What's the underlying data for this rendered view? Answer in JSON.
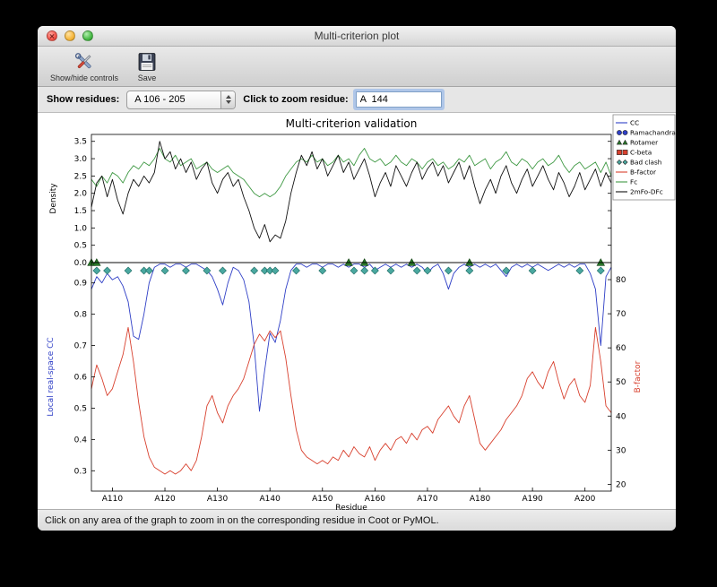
{
  "window": {
    "title": "Multi-criterion plot"
  },
  "toolbar": {
    "buttons": [
      {
        "label": "Show/hide controls",
        "icon": "tools-icon"
      },
      {
        "label": "Save",
        "icon": "floppy-icon"
      }
    ]
  },
  "controls": {
    "show_residues_label": "Show residues:",
    "residue_range_value": "A 106 - 205",
    "zoom_label": "Click to zoom residue:",
    "zoom_value": "A  144"
  },
  "status_bar": {
    "text": "Click on any area of the graph to zoom in on the corresponding residue in Coot or PyMOL."
  },
  "colors": {
    "cc_blue": "#2f3fc6",
    "bfactor_red": "#d8402e",
    "fc_green": "#3f9944",
    "map_black": "#111111",
    "clash_teal": "#4aa8a0",
    "rotamer_green": "#2a7a2a"
  },
  "chart_data": {
    "type": "line",
    "title": "Multi-criterion validation",
    "xlabel": "Residue",
    "x_range": [
      106,
      205
    ],
    "xticks": [
      110,
      120,
      130,
      140,
      150,
      160,
      170,
      180,
      190,
      200
    ],
    "xtick_labels": [
      "A110",
      "A120",
      "A130",
      "A140",
      "A150",
      "A160",
      "A170",
      "A180",
      "A190",
      "A200"
    ],
    "panels": [
      {
        "name": "density",
        "ylabel": "Density",
        "ylim": [
          0,
          3.7
        ],
        "yticks": [
          "0.0",
          "0.5",
          "1.0",
          "1.5",
          "2.0",
          "2.5",
          "3.0",
          "3.5"
        ],
        "series": [
          {
            "name": "Fc",
            "color": "#3f9944",
            "values": [
              2.4,
              2.2,
              2.5,
              2.3,
              2.6,
              2.5,
              2.3,
              2.6,
              2.8,
              2.7,
              2.9,
              2.8,
              3.0,
              3.3,
              3.0,
              2.9,
              3.1,
              2.8,
              2.9,
              3.0,
              2.7,
              2.8,
              2.9,
              2.7,
              2.6,
              2.7,
              2.8,
              2.6,
              2.5,
              2.4,
              2.2,
              2.0,
              1.9,
              2.0,
              1.9,
              2.0,
              2.2,
              2.5,
              2.7,
              2.9,
              3.0,
              2.9,
              3.1,
              2.9,
              3.0,
              2.8,
              2.9,
              3.1,
              2.9,
              3.0,
              2.8,
              3.1,
              3.3,
              3.0,
              2.9,
              3.0,
              2.8,
              2.9,
              3.1,
              2.9,
              2.8,
              3.0,
              2.9,
              2.7,
              2.9,
              3.0,
              2.8,
              2.9,
              2.7,
              2.8,
              3.0,
              2.9,
              3.1,
              2.8,
              2.9,
              3.0,
              2.7,
              2.9,
              3.0,
              3.2,
              2.9,
              2.8,
              3.0,
              2.9,
              2.7,
              2.9,
              3.0,
              2.8,
              2.9,
              3.1,
              2.8,
              2.6,
              2.8,
              2.9,
              2.7,
              2.8,
              2.9,
              2.6,
              2.9,
              2.5
            ]
          },
          {
            "name": "2mFo-DFc",
            "color": "#111111",
            "values": [
              1.6,
              2.3,
              2.5,
              1.9,
              2.4,
              1.8,
              1.4,
              2.0,
              2.4,
              2.2,
              2.5,
              2.3,
              2.6,
              3.5,
              3.0,
              3.2,
              2.7,
              3.0,
              2.6,
              2.9,
              2.4,
              2.7,
              2.9,
              2.3,
              2.0,
              2.4,
              2.6,
              2.2,
              2.4,
              1.9,
              1.5,
              1.0,
              0.7,
              1.1,
              0.6,
              0.8,
              0.7,
              1.2,
              2.0,
              2.6,
              3.1,
              2.8,
              3.2,
              2.7,
              3.0,
              2.5,
              2.8,
              3.1,
              2.6,
              2.9,
              2.4,
              2.7,
              3.0,
              2.5,
              1.9,
              2.3,
              2.6,
              2.2,
              2.8,
              2.5,
              2.2,
              2.6,
              2.9,
              2.4,
              2.7,
              2.9,
              2.5,
              2.8,
              2.3,
              2.6,
              2.9,
              2.4,
              2.8,
              2.2,
              1.7,
              2.1,
              2.4,
              2.0,
              2.5,
              2.8,
              2.3,
              2.0,
              2.4,
              2.7,
              2.2,
              2.5,
              2.8,
              2.4,
              2.1,
              2.6,
              2.3,
              1.9,
              2.2,
              2.6,
              2.1,
              2.4,
              2.7,
              2.2,
              2.6,
              2.3
            ]
          }
        ]
      },
      {
        "name": "cc_bfactor",
        "left_ylabel": "Local real-space CC",
        "left_color": "#2f3fc6",
        "left_ylim": [
          0.235,
          0.965
        ],
        "left_yticks": [
          "0.3",
          "0.4",
          "0.5",
          "0.6",
          "0.7",
          "0.8",
          "0.9"
        ],
        "right_ylabel": "B-factor",
        "right_color": "#d8402e",
        "right_ylim": [
          18,
          85
        ],
        "right_yticks": [
          "20",
          "30",
          "40",
          "50",
          "60",
          "70",
          "80"
        ],
        "series": [
          {
            "name": "CC",
            "axis": "left",
            "color": "#2f3fc6",
            "values": [
              0.88,
              0.92,
              0.9,
              0.93,
              0.91,
              0.92,
              0.89,
              0.84,
              0.73,
              0.72,
              0.8,
              0.9,
              0.95,
              0.96,
              0.96,
              0.95,
              0.96,
              0.96,
              0.95,
              0.96,
              0.96,
              0.95,
              0.94,
              0.92,
              0.88,
              0.83,
              0.9,
              0.95,
              0.94,
              0.91,
              0.84,
              0.7,
              0.49,
              0.62,
              0.74,
              0.71,
              0.78,
              0.88,
              0.94,
              0.96,
              0.96,
              0.95,
              0.96,
              0.96,
              0.95,
              0.96,
              0.96,
              0.95,
              0.96,
              0.95,
              0.96,
              0.96,
              0.95,
              0.96,
              0.94,
              0.95,
              0.96,
              0.95,
              0.96,
              0.95,
              0.96,
              0.95,
              0.96,
              0.95,
              0.93,
              0.95,
              0.96,
              0.93,
              0.88,
              0.93,
              0.95,
              0.96,
              0.95,
              0.96,
              0.95,
              0.96,
              0.95,
              0.96,
              0.94,
              0.92,
              0.95,
              0.96,
              0.95,
              0.96,
              0.95,
              0.96,
              0.95,
              0.94,
              0.95,
              0.96,
              0.95,
              0.96,
              0.95,
              0.96,
              0.96,
              0.93,
              0.88,
              0.7,
              0.92,
              0.95
            ]
          },
          {
            "name": "B-factor",
            "axis": "right",
            "color": "#d8402e",
            "values": [
              48,
              55,
              51,
              46,
              48,
              53,
              58,
              66,
              56,
              44,
              34,
              28,
              25,
              24,
              23,
              24,
              23,
              24,
              26,
              24,
              27,
              34,
              43,
              46,
              41,
              38,
              43,
              46,
              48,
              51,
              56,
              61,
              64,
              62,
              65,
              63,
              65,
              57,
              46,
              36,
              30,
              28,
              27,
              26,
              27,
              26,
              28,
              27,
              30,
              28,
              31,
              29,
              28,
              31,
              27,
              30,
              32,
              30,
              33,
              34,
              32,
              35,
              33,
              36,
              37,
              35,
              39,
              41,
              43,
              40,
              38,
              43,
              46,
              39,
              32,
              30,
              32,
              34,
              36,
              39,
              41,
              43,
              46,
              51,
              53,
              50,
              48,
              53,
              56,
              50,
              45,
              49,
              51,
              46,
              44,
              49,
              66,
              56,
              43,
              41
            ]
          }
        ],
        "markers": [
          {
            "name": "Rotamer",
            "shape": "triangle",
            "color": "#2a7a2a",
            "residues": [
              106,
              107,
              155,
              158,
              167,
              178,
              203
            ]
          },
          {
            "name": "Bad clash",
            "shape": "diamond",
            "color": "#4aa8a0",
            "residues": [
              107,
              109,
              113,
              116,
              117,
              120,
              124,
              128,
              131,
              137,
              139,
              140,
              141,
              145,
              150,
              156,
              158,
              160,
              163,
              168,
              170,
              174,
              178,
              185,
              190,
              199,
              203
            ]
          }
        ]
      }
    ],
    "legend": [
      {
        "label": "CC",
        "type": "line",
        "color": "#2f3fc6"
      },
      {
        "label": "Ramachandran",
        "type": "marker",
        "shape": "circle",
        "color": "#2f3fc6"
      },
      {
        "label": "Rotamer",
        "type": "marker",
        "shape": "triangle",
        "color": "#2a7a2a"
      },
      {
        "label": "C-beta",
        "type": "marker",
        "shape": "square",
        "color": "#d8402e"
      },
      {
        "label": "Bad clash",
        "type": "marker",
        "shape": "diamond",
        "color": "#4aa8a0"
      },
      {
        "label": "B-factor",
        "type": "line",
        "color": "#d8402e"
      },
      {
        "label": "Fc",
        "type": "line",
        "color": "#3f9944"
      },
      {
        "label": "2mFo-DFc",
        "type": "line",
        "color": "#111111"
      }
    ]
  }
}
